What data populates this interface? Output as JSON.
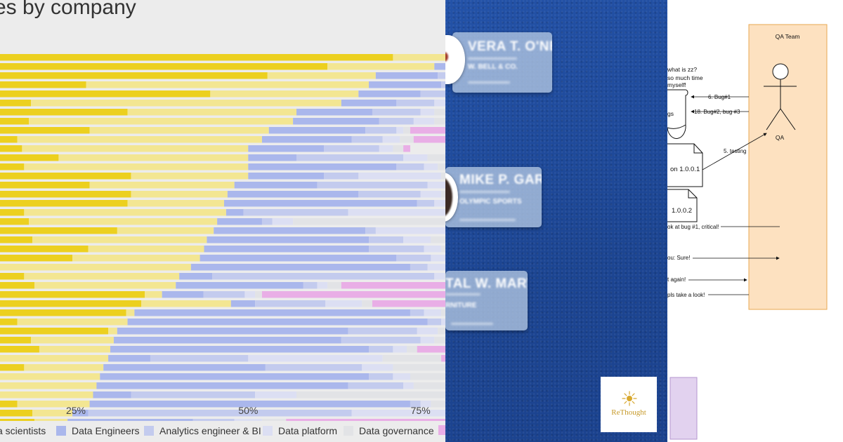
{
  "chart_panel": {
    "title": "es by company",
    "x_ticks": [
      "25%",
      "50%",
      "75%"
    ],
    "legend": [
      {
        "label": "a scientists",
        "color": "#f0d94a"
      },
      {
        "label": "Data Engineers",
        "color": "#aab7ec"
      },
      {
        "label": "Analytics engineer & BI",
        "color": "#c3cbee"
      },
      {
        "label": "Data platform",
        "color": "#dcdff3"
      },
      {
        "label": "Data governance",
        "color": "#e2e3e6"
      },
      {
        "label": "",
        "color": "#e9aee6"
      }
    ]
  },
  "chart_data": {
    "type": "bar",
    "orientation": "horizontal",
    "stacked": true,
    "title": "es by company",
    "xlabel": "",
    "ylabel": "",
    "x_ticks": [
      25,
      50,
      75
    ],
    "xlim": [
      14,
      78.6
    ],
    "series_order": [
      "Data scientists (dark)",
      "Data scientists (light)",
      "Data Engineers",
      "Analytics engineer & BI",
      "Data platform",
      "Data governance",
      "pink"
    ],
    "colors": [
      "#ecd01f",
      "#f3e692",
      "#aab7ec",
      "#c3cbee",
      "#dcdff3",
      "#e2e3e6",
      "#e9aee6"
    ],
    "rows": [
      [
        71,
        100,
        100,
        100,
        100,
        100,
        100
      ],
      [
        61.5,
        77,
        79,
        100,
        100,
        100,
        100
      ],
      [
        52.8,
        68.5,
        77.5,
        100,
        100,
        100,
        100
      ],
      [
        26.5,
        67.5,
        78,
        100,
        100,
        100,
        100
      ],
      [
        44.5,
        66,
        75,
        100,
        100,
        100,
        100
      ],
      [
        18.5,
        63.5,
        71.5,
        77,
        79,
        100,
        100
      ],
      [
        32.5,
        57,
        68,
        75,
        77,
        79,
        100
      ],
      [
        18.2,
        56.5,
        69,
        74,
        77,
        100,
        100
      ],
      [
        27,
        53,
        67,
        71.5,
        72.5,
        73.5,
        100
      ],
      [
        16.5,
        52,
        65,
        69.5,
        72,
        74,
        100
      ],
      [
        17.2,
        50,
        61,
        69,
        71,
        72.5,
        73.5
      ],
      [
        22.5,
        50,
        57,
        72.5,
        76,
        100,
        100
      ],
      [
        17.5,
        50,
        71.5,
        75.5,
        77.5,
        100,
        100
      ],
      [
        33,
        50,
        61,
        66,
        78,
        100,
        100
      ],
      [
        27,
        48,
        60,
        76,
        100,
        100,
        100
      ],
      [
        33,
        47,
        66,
        75,
        78,
        100,
        100
      ],
      [
        32.5,
        46.5,
        74.5,
        77,
        100,
        100,
        100
      ],
      [
        17.5,
        46.8,
        49.3,
        64.5,
        100,
        100,
        100
      ],
      [
        18.2,
        45.5,
        52,
        53.5,
        56.5,
        100,
        100
      ],
      [
        31,
        45,
        67,
        68.5,
        100,
        100,
        100
      ],
      [
        18.7,
        44,
        67.5,
        72.5,
        76.5,
        100,
        100
      ],
      [
        26.8,
        43.6,
        67.5,
        75.5,
        78,
        100,
        100
      ],
      [
        24.5,
        43,
        71.5,
        76.5,
        100,
        100,
        100
      ],
      [
        14,
        41.7,
        73.5,
        76,
        100,
        100,
        100
      ],
      [
        17.5,
        40,
        44.8,
        77,
        78.5,
        100,
        100
      ],
      [
        19,
        39.5,
        58,
        60,
        61.5,
        63.5,
        100
      ],
      [
        35,
        37.5,
        43.5,
        49.5,
        51,
        52,
        100
      ],
      [
        34.5,
        47.5,
        51,
        61.2,
        66.5,
        68,
        100
      ],
      [
        32.3,
        33.5,
        73.5,
        75.5,
        78,
        100,
        100
      ],
      [
        16.5,
        32.5,
        76,
        78,
        100,
        100,
        100
      ],
      [
        29.7,
        31,
        64.5,
        74.5,
        77.5,
        100,
        100
      ],
      [
        18.5,
        30.5,
        63.5,
        75,
        77,
        100,
        100
      ],
      [
        19.7,
        30,
        67.5,
        71,
        73,
        74.5,
        100
      ],
      [
        13.5,
        29.7,
        35.8,
        50,
        69.5,
        78,
        100
      ],
      [
        17.5,
        29,
        52.5,
        66.5,
        71,
        100,
        100
      ],
      [
        14,
        28.5,
        67.5,
        71,
        73.5,
        100,
        100
      ],
      [
        14,
        28,
        64.5,
        72.5,
        74,
        79.5,
        100
      ],
      [
        13.5,
        27.5,
        33,
        51,
        57,
        100,
        100
      ],
      [
        16.5,
        27,
        73.5,
        75,
        76.5,
        78.8,
        100
      ],
      [
        18.7,
        24.5,
        26.8,
        65,
        100,
        100,
        100
      ],
      [
        19,
        23.8,
        42,
        48,
        52,
        55.5,
        100
      ]
    ]
  },
  "cards_panel": {
    "cards": [
      {
        "name": "VERA T. O'NEILL",
        "company": "W. BELL & CO."
      },
      {
        "name": "MIKE P. GARZA",
        "company": "OLYMPIC SPORTS"
      },
      {
        "name": "TAL W. MARTIN",
        "company": "RNITURE"
      }
    ],
    "logo": {
      "text": "ReThought",
      "icon": "sun-icon"
    }
  },
  "diagram_panel": {
    "actor_box_title": "QA Team",
    "actor_label": "QA",
    "note_lines": [
      "what is zz?",
      "so much time",
      "myself!"
    ],
    "db_label": "gs",
    "version_1": "on 1.0.0.1",
    "version_2": "1.0.0.2",
    "messages": [
      "6. Bug#1",
      "18. Bug#2, bug #3",
      "5. testing",
      "ok at bug #1, critical!",
      "ou: Sure!",
      "t again!",
      "pls take a look!"
    ]
  }
}
